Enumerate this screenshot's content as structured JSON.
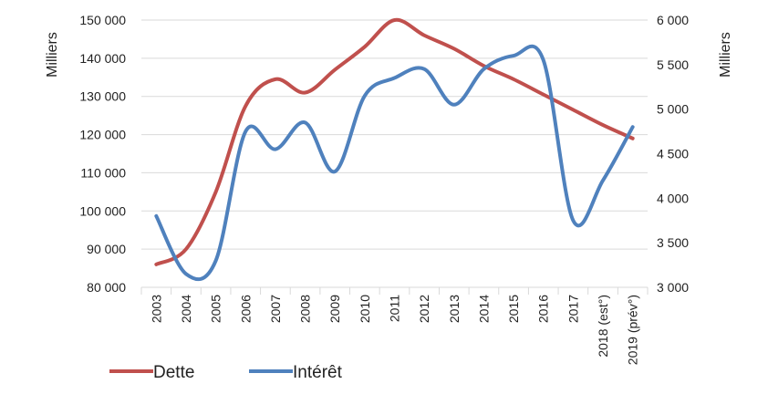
{
  "chart_data": {
    "type": "line",
    "categories": [
      "2003",
      "2004",
      "2005",
      "2006",
      "2007",
      "2008",
      "2009",
      "2010",
      "2011",
      "2012",
      "2013",
      "2014",
      "2015",
      "2016",
      "2017",
      "2018 (est°)",
      "2019 (prév°)"
    ],
    "y_left": {
      "label": "Milliers",
      "ylim": [
        80000,
        150000
      ],
      "ticks": [
        80000,
        90000,
        100000,
        110000,
        120000,
        130000,
        140000,
        150000
      ],
      "tick_labels": [
        "80 000",
        "90 000",
        "100 000",
        "110 000",
        "120 000",
        "130 000",
        "140 000",
        "150 000"
      ]
    },
    "y_right": {
      "label": "Milliers",
      "ylim": [
        3000,
        6000
      ],
      "ticks": [
        3000,
        3500,
        4000,
        4500,
        5000,
        5500,
        6000
      ],
      "tick_labels": [
        "3 000",
        "3 500",
        "4 000",
        "4 500",
        "5 000",
        "5 500",
        "6 000"
      ]
    },
    "series": [
      {
        "name": "Dette",
        "axis": "left",
        "color": "#c0504d",
        "values": [
          86000,
          90000,
          105000,
          127500,
          134500,
          131000,
          137000,
          143000,
          150000,
          146000,
          142500,
          138000,
          134500,
          130500,
          126500,
          122500,
          119000
        ]
      },
      {
        "name": "Intérêt",
        "axis": "right",
        "color": "#4f81bd",
        "values": [
          3800,
          3150,
          3300,
          4750,
          4550,
          4850,
          4300,
          5150,
          5350,
          5450,
          5050,
          5450,
          5600,
          5550,
          3750,
          4200,
          4800
        ]
      }
    ],
    "grid": true,
    "legend_position": "bottom-left"
  }
}
